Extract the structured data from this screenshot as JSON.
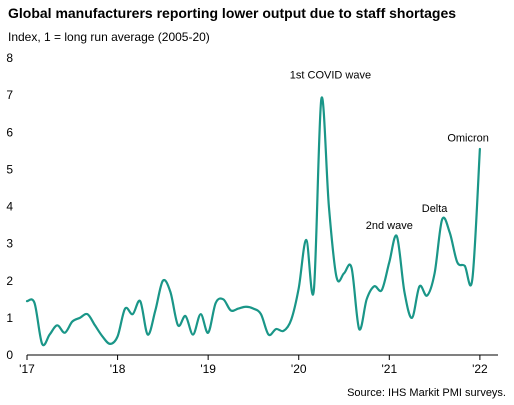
{
  "chart_data": {
    "type": "line",
    "title": "Global manufacturers reporting lower output due to staff shortages",
    "subtitle": "Index, 1 = long run average (2005-20)",
    "source": "Source: IHS Markit PMI surveys.",
    "ylim": [
      0,
      8
    ],
    "yticks": [
      "0",
      "1",
      "2",
      "3",
      "4",
      "5",
      "6",
      "7",
      "8"
    ],
    "xlim": [
      2017.0,
      2022.2
    ],
    "xticks": [
      {
        "value": 2017,
        "label": "'17"
      },
      {
        "value": 2018,
        "label": "'18"
      },
      {
        "value": 2019,
        "label": "'19"
      },
      {
        "value": 2020,
        "label": "'20"
      },
      {
        "value": 2021,
        "label": "'21"
      },
      {
        "value": 2022,
        "label": "'22"
      }
    ],
    "grid": false,
    "line_color": "#1a9688",
    "series": [
      {
        "x": [
          2017.0,
          2017.083,
          2017.167,
          2017.25,
          2017.333,
          2017.417,
          2017.5,
          2017.583,
          2017.667,
          2017.75,
          2017.833,
          2017.917,
          2018.0,
          2018.083,
          2018.167,
          2018.25,
          2018.333,
          2018.417,
          2018.5,
          2018.583,
          2018.667,
          2018.75,
          2018.833,
          2018.917,
          2019.0,
          2019.083,
          2019.167,
          2019.25,
          2019.333,
          2019.417,
          2019.5,
          2019.583,
          2019.667,
          2019.75,
          2019.833,
          2019.917,
          2020.0,
          2020.083,
          2020.167,
          2020.25,
          2020.333,
          2020.417,
          2020.5,
          2020.583,
          2020.667,
          2020.75,
          2020.833,
          2020.917,
          2021.0,
          2021.083,
          2021.167,
          2021.25,
          2021.333,
          2021.417,
          2021.5,
          2021.583,
          2021.667,
          2021.75,
          2021.833,
          2021.917,
          2022.0
        ],
        "values": [
          1.45,
          1.4,
          0.3,
          0.55,
          0.8,
          0.6,
          0.9,
          1.0,
          1.1,
          0.8,
          0.5,
          0.3,
          0.5,
          1.25,
          1.1,
          1.45,
          0.55,
          1.2,
          2.0,
          1.7,
          0.8,
          1.05,
          0.55,
          1.1,
          0.6,
          1.4,
          1.5,
          1.2,
          1.25,
          1.3,
          1.25,
          1.1,
          0.55,
          0.7,
          0.65,
          0.95,
          1.8,
          3.1,
          1.75,
          6.9,
          4.0,
          2.1,
          2.2,
          2.35,
          0.7,
          1.5,
          1.85,
          1.75,
          2.5,
          3.2,
          1.7,
          1.0,
          1.85,
          1.6,
          2.2,
          3.65,
          3.3,
          2.5,
          2.4,
          2.05,
          5.55
        ]
      }
    ],
    "annotations": [
      {
        "text": "1st COVID wave",
        "x": 2020.35,
        "y": 7.45
      },
      {
        "text": "2nd wave",
        "x": 2021.0,
        "y": 3.4
      },
      {
        "text": "Delta",
        "x": 2021.5,
        "y": 3.85
      },
      {
        "text": "Omicron",
        "x": 2021.87,
        "y": 5.75
      }
    ]
  }
}
